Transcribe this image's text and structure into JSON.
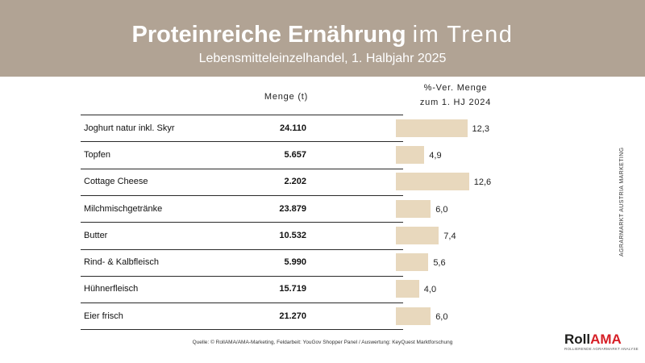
{
  "header": {
    "title_bold": "Proteinreiche Ernährung",
    "title_light": "im Trend",
    "subtitle": "Lebensmitteleinzelhandel, 1. Halbjahr 2025"
  },
  "columns": {
    "menge": "Menge (t)",
    "veraenderung_line1": "%-Ver. Menge",
    "veraenderung_line2": "zum 1. HJ 2024"
  },
  "chart_data": {
    "type": "bar",
    "categories": [
      "Joghurt natur inkl. Skyr",
      "Topfen",
      "Cottage Cheese",
      "Milchmischgetränke",
      "Butter",
      "Rind- & Kalbfleisch",
      "Hühnerfleisch",
      "Eier frisch"
    ],
    "menge": [
      "24.110",
      "5.657",
      "2.202",
      "23.879",
      "10.532",
      "5.990",
      "15.719",
      "21.270"
    ],
    "values": [
      12.3,
      4.9,
      12.6,
      6.0,
      7.4,
      5.6,
      4.0,
      6.0
    ],
    "value_labels": [
      "12,3",
      "4,9",
      "12,6",
      "6,0",
      "7,4",
      "5,6",
      "4,0",
      "6,0"
    ],
    "bar_color": "#e8d8bd"
  },
  "side_text": "AGRARMARKT AUSTRIA MARKETING",
  "source": "Quelle: © RollAMA/AMA-Marketing, Feldarbeit: YouGov Shopper Panel / Auswertung: KeyQuest Marktforschung",
  "logo": {
    "part1": "Roll",
    "part2": "AMA",
    "tagline": "ROLLIERENDE AGRARMARKT ANALYSE"
  },
  "colors": {
    "header_bg": "#b1a394",
    "logo_red": "#d61f26"
  }
}
